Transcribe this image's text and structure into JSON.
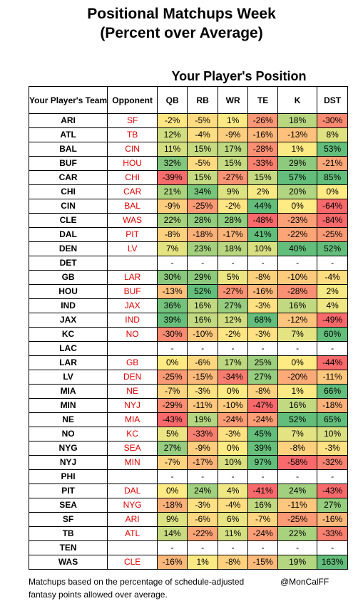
{
  "title_line1": "Positional Matchups Week",
  "title_line2": "(Percent over Average)",
  "subtitle": "Your Player's Position",
  "headers": {
    "team": "Your Player's Team",
    "opponent": "Opponent",
    "positions": [
      "QB",
      "RB",
      "WR",
      "TE",
      "K",
      "DST"
    ]
  },
  "footer": "Matchups based on the percentage of schedule-adjusted fantasy points allowed over average.",
  "credit": "@MonCalFF",
  "chart_data": {
    "type": "table",
    "columns": [
      "Your Player's Team",
      "Opponent",
      "QB",
      "RB",
      "WR",
      "TE",
      "K",
      "DST"
    ],
    "rows": [
      {
        "team": "ARI",
        "opp": "SF",
        "vals": [
          "-2%",
          "-5%",
          "1%",
          "-26%",
          "18%",
          "-30%"
        ]
      },
      {
        "team": "ATL",
        "opp": "TB",
        "vals": [
          "12%",
          "-4%",
          "-9%",
          "-16%",
          "-13%",
          "8%"
        ]
      },
      {
        "team": "BAL",
        "opp": "CIN",
        "vals": [
          "11%",
          "15%",
          "17%",
          "-28%",
          "1%",
          "53%"
        ]
      },
      {
        "team": "BUF",
        "opp": "HOU",
        "vals": [
          "32%",
          "-5%",
          "15%",
          "-33%",
          "29%",
          "-21%"
        ]
      },
      {
        "team": "CAR",
        "opp": "CHI",
        "vals": [
          "-39%",
          "15%",
          "-27%",
          "15%",
          "57%",
          "85%"
        ]
      },
      {
        "team": "CHI",
        "opp": "CAR",
        "vals": [
          "21%",
          "34%",
          "9%",
          "2%",
          "20%",
          "0%"
        ]
      },
      {
        "team": "CIN",
        "opp": "BAL",
        "vals": [
          "-9%",
          "-25%",
          "-2%",
          "44%",
          "0%",
          "-64%"
        ]
      },
      {
        "team": "CLE",
        "opp": "WAS",
        "vals": [
          "22%",
          "28%",
          "28%",
          "-48%",
          "-23%",
          "-84%"
        ]
      },
      {
        "team": "DAL",
        "opp": "PIT",
        "vals": [
          "-8%",
          "-18%",
          "-17%",
          "41%",
          "-22%",
          "-25%"
        ]
      },
      {
        "team": "DEN",
        "opp": "LV",
        "vals": [
          "7%",
          "23%",
          "18%",
          "10%",
          "40%",
          "52%"
        ]
      },
      {
        "team": "DET",
        "opp": "",
        "vals": [
          "-",
          "-",
          "-",
          "-",
          "-",
          "-"
        ]
      },
      {
        "team": "GB",
        "opp": "LAR",
        "vals": [
          "30%",
          "29%",
          "5%",
          "-8%",
          "-10%",
          "-4%"
        ]
      },
      {
        "team": "HOU",
        "opp": "BUF",
        "vals": [
          "-13%",
          "52%",
          "-27%",
          "-16%",
          "-28%",
          "2%"
        ]
      },
      {
        "team": "IND",
        "opp": "JAX",
        "vals": [
          "36%",
          "16%",
          "27%",
          "-3%",
          "16%",
          "4%"
        ]
      },
      {
        "team": "JAX",
        "opp": "IND",
        "vals": [
          "39%",
          "16%",
          "12%",
          "68%",
          "-12%",
          "-49%"
        ]
      },
      {
        "team": "KC",
        "opp": "NO",
        "vals": [
          "-30%",
          "-10%",
          "-2%",
          "-3%",
          "7%",
          "60%"
        ]
      },
      {
        "team": "LAC",
        "opp": "",
        "vals": [
          "-",
          "-",
          "-",
          "-",
          "-",
          "-"
        ]
      },
      {
        "team": "LAR",
        "opp": "GB",
        "vals": [
          "0%",
          "-6%",
          "17%",
          "25%",
          "0%",
          "-44%"
        ]
      },
      {
        "team": "LV",
        "opp": "DEN",
        "vals": [
          "-25%",
          "-15%",
          "-34%",
          "27%",
          "-20%",
          "-11%"
        ]
      },
      {
        "team": "MIA",
        "opp": "NE",
        "vals": [
          "-7%",
          "-3%",
          "0%",
          "-8%",
          "1%",
          "66%"
        ]
      },
      {
        "team": "MIN",
        "opp": "NYJ",
        "vals": [
          "-29%",
          "-11%",
          "-10%",
          "-47%",
          "16%",
          "-18%"
        ]
      },
      {
        "team": "NE",
        "opp": "MIA",
        "vals": [
          "-43%",
          "19%",
          "-24%",
          "-24%",
          "52%",
          "65%"
        ]
      },
      {
        "team": "NO",
        "opp": "KC",
        "vals": [
          "5%",
          "-33%",
          "-3%",
          "45%",
          "7%",
          "10%"
        ]
      },
      {
        "team": "NYG",
        "opp": "SEA",
        "vals": [
          "27%",
          "-9%",
          "0%",
          "39%",
          "-8%",
          "-3%"
        ]
      },
      {
        "team": "NYJ",
        "opp": "MIN",
        "vals": [
          "-7%",
          "-17%",
          "10%",
          "97%",
          "-58%",
          "-32%"
        ]
      },
      {
        "team": "PHI",
        "opp": "",
        "vals": [
          "-",
          "-",
          "-",
          "-",
          "-",
          "-"
        ]
      },
      {
        "team": "PIT",
        "opp": "DAL",
        "vals": [
          "0%",
          "24%",
          "4%",
          "-41%",
          "24%",
          "-43%"
        ]
      },
      {
        "team": "SEA",
        "opp": "NYG",
        "vals": [
          "-18%",
          "-3%",
          "-4%",
          "16%",
          "-11%",
          "27%"
        ]
      },
      {
        "team": "SF",
        "opp": "ARI",
        "vals": [
          "9%",
          "-6%",
          "6%",
          "-7%",
          "-25%",
          "-16%"
        ]
      },
      {
        "team": "TB",
        "opp": "ATL",
        "vals": [
          "14%",
          "-22%",
          "11%",
          "-24%",
          "22%",
          "-33%"
        ]
      },
      {
        "team": "TEN",
        "opp": "",
        "vals": [
          "-",
          "-",
          "-",
          "-",
          "-",
          "-"
        ]
      },
      {
        "team": "WAS",
        "opp": "CLE",
        "vals": [
          "-16%",
          "1%",
          "-8%",
          "-15%",
          "19%",
          "163%"
        ]
      }
    ],
    "color_scale": {
      "low": "#f8696b",
      "mid": "#ffeb84",
      "high": "#63be7b"
    }
  }
}
